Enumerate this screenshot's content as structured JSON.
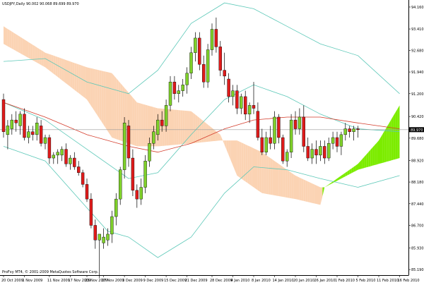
{
  "window": {
    "symbol_header": "USDJPY,Daily  90.002 90.068 89.699 89.970",
    "copyright": "ProFxy MT4, © 2001-2009 MetaQuotes Software Corp."
  },
  "colors": {
    "background": "#ffffff",
    "bull_candle": "#7fd12a",
    "bear_candle": "#e01b1b",
    "wick": "#000000",
    "cloud_bearish": "#fbd3b3",
    "cloud_bullish": "#7cec00",
    "bollinger": "#5cc8b8",
    "moving_average": "#d43b2a",
    "price_line": "#9a9a9a"
  },
  "chart_data": {
    "type": "candlestick",
    "symbol": "USDJPY",
    "timeframe": "Daily",
    "header_ohlc": {
      "open": 90.002,
      "high": 90.068,
      "low": 89.699,
      "close": 89.97
    },
    "current_price_label": "89.970",
    "ylim": [
      85.0,
      94.4
    ],
    "y_ticks": [
      {
        "value": 94.16,
        "label": "94.160"
      },
      {
        "value": 93.41,
        "label": "93.410"
      },
      {
        "value": 92.68,
        "label": "92.680"
      },
      {
        "value": 91.94,
        "label": "91.940"
      },
      {
        "value": 91.2,
        "label": "91.200"
      },
      {
        "value": 90.42,
        "label": "90.420"
      },
      {
        "value": 89.68,
        "label": "89.680"
      },
      {
        "value": 88.92,
        "label": "88.920"
      },
      {
        "value": 88.18,
        "label": "88.180"
      },
      {
        "value": 87.44,
        "label": "87.440"
      },
      {
        "value": 86.7,
        "label": "86.700"
      },
      {
        "value": 85.93,
        "label": "85.930"
      },
      {
        "value": 85.19,
        "label": "85.190"
      }
    ],
    "x_tick_labels": [
      {
        "index": 0,
        "label": "20 Oct 2009"
      },
      {
        "index": 5,
        "label": "1 Nov 2009"
      },
      {
        "index": 11,
        "label": "11 Nov 2009"
      },
      {
        "index": 16,
        "label": "17 Nov 2009"
      },
      {
        "index": 20,
        "label": "23 Nov 2009"
      },
      {
        "index": 24,
        "label": "27 Nov 2009"
      },
      {
        "index": 29,
        "label": "3 Dec 2009"
      },
      {
        "index": 34,
        "label": "9 Dec 2009"
      },
      {
        "index": 39,
        "label": "15 Dec 2009"
      },
      {
        "index": 44,
        "label": "21 Dec 2009"
      },
      {
        "index": 50,
        "label": "28 Dec 2009"
      },
      {
        "index": 55,
        "label": "4 Jan 2010"
      },
      {
        "index": 60,
        "label": "8 Jan 2010"
      },
      {
        "index": 65,
        "label": "14 Jan 2010"
      },
      {
        "index": 70,
        "label": "20 Jan 2010"
      },
      {
        "index": 75,
        "label": "26 Jan 2010"
      },
      {
        "index": 80,
        "label": "1 Feb 2010"
      },
      {
        "index": 85,
        "label": "5 Feb 2010"
      },
      {
        "index": 90,
        "label": "11 Feb 2010"
      },
      {
        "index": 95,
        "label": "16 Feb 2010"
      }
    ],
    "candles": [
      [
        91.0,
        91.2,
        89.7,
        89.9
      ],
      [
        89.8,
        90.3,
        89.3,
        90.1
      ],
      [
        90.0,
        90.5,
        89.8,
        90.3
      ],
      [
        90.3,
        90.6,
        89.9,
        90.2
      ],
      [
        90.1,
        90.6,
        89.8,
        90.5
      ],
      [
        90.5,
        90.7,
        89.6,
        89.7
      ],
      [
        89.7,
        90.1,
        89.5,
        89.9
      ],
      [
        89.9,
        90.1,
        89.6,
        89.8
      ],
      [
        89.8,
        90.4,
        89.6,
        90.2
      ],
      [
        90.1,
        90.3,
        89.4,
        89.5
      ],
      [
        89.5,
        89.8,
        89.3,
        89.7
      ],
      [
        89.7,
        89.8,
        88.8,
        89.0
      ],
      [
        89.0,
        89.2,
        88.8,
        89.1
      ],
      [
        89.1,
        89.3,
        88.8,
        89.2
      ],
      [
        89.1,
        89.4,
        88.9,
        89.3
      ],
      [
        89.3,
        89.5,
        88.7,
        88.8
      ],
      [
        88.8,
        89.1,
        88.6,
        89.0
      ],
      [
        89.0,
        89.2,
        88.6,
        88.7
      ],
      [
        88.7,
        88.9,
        88.4,
        88.5
      ],
      [
        88.5,
        88.6,
        88.0,
        88.1
      ],
      [
        88.1,
        88.3,
        87.5,
        87.6
      ],
      [
        87.6,
        87.8,
        86.6,
        86.7
      ],
      [
        86.7,
        86.9,
        85.9,
        86.2
      ],
      [
        86.2,
        86.4,
        84.9,
        86.4
      ],
      [
        86.1,
        86.6,
        85.9,
        86.3
      ],
      [
        86.2,
        86.6,
        86.0,
        86.4
      ],
      [
        86.4,
        87.2,
        86.1,
        87.0
      ],
      [
        87.0,
        87.8,
        86.7,
        87.6
      ],
      [
        87.6,
        88.7,
        87.4,
        88.6
      ],
      [
        88.6,
        90.4,
        88.3,
        90.2
      ],
      [
        90.1,
        90.3,
        88.7,
        89.0
      ],
      [
        89.0,
        89.3,
        87.7,
        87.9
      ],
      [
        87.9,
        88.1,
        87.3,
        87.6
      ],
      [
        87.6,
        88.3,
        87.4,
        88.0
      ],
      [
        88.0,
        89.1,
        87.8,
        88.9
      ],
      [
        88.9,
        89.7,
        88.7,
        89.5
      ],
      [
        89.5,
        90.1,
        89.3,
        89.9
      ],
      [
        89.8,
        90.5,
        89.6,
        90.3
      ],
      [
        90.3,
        90.6,
        89.9,
        90.1
      ],
      [
        90.1,
        91.0,
        89.9,
        90.8
      ],
      [
        90.8,
        91.8,
        90.6,
        91.6
      ],
      [
        91.6,
        91.8,
        91.0,
        91.2
      ],
      [
        91.2,
        91.5,
        90.9,
        91.3
      ],
      [
        91.3,
        91.7,
        91.1,
        91.5
      ],
      [
        91.5,
        92.1,
        91.2,
        91.9
      ],
      [
        91.9,
        92.8,
        91.7,
        92.6
      ],
      [
        92.6,
        93.3,
        92.3,
        93.1
      ],
      [
        93.1,
        93.3,
        92.0,
        92.2
      ],
      [
        92.2,
        92.5,
        91.4,
        91.6
      ],
      [
        91.6,
        92.9,
        91.4,
        92.7
      ],
      [
        92.7,
        93.6,
        92.5,
        93.4
      ],
      [
        93.4,
        93.8,
        92.6,
        92.8
      ],
      [
        92.8,
        93.0,
        91.8,
        92.0
      ],
      [
        92.0,
        92.6,
        91.5,
        91.8
      ],
      [
        91.7,
        91.9,
        90.9,
        91.1
      ],
      [
        91.1,
        91.5,
        90.8,
        91.3
      ],
      [
        91.3,
        91.5,
        90.5,
        90.7
      ],
      [
        90.7,
        91.2,
        90.5,
        91.1
      ],
      [
        91.1,
        91.3,
        90.3,
        90.5
      ],
      [
        90.5,
        90.9,
        90.2,
        90.8
      ],
      [
        90.8,
        91.6,
        90.5,
        90.7
      ],
      [
        90.6,
        90.9,
        89.6,
        89.7
      ],
      [
        89.7,
        90.0,
        89.1,
        89.2
      ],
      [
        89.2,
        89.9,
        89.1,
        89.7
      ],
      [
        89.7,
        90.1,
        89.3,
        89.5
      ],
      [
        89.5,
        90.6,
        89.3,
        90.4
      ],
      [
        90.4,
        90.5,
        89.5,
        89.7
      ],
      [
        89.7,
        89.8,
        88.8,
        88.9
      ],
      [
        88.9,
        89.3,
        88.7,
        89.2
      ],
      [
        89.2,
        90.5,
        89.0,
        90.3
      ],
      [
        90.3,
        90.6,
        89.8,
        90.0
      ],
      [
        90.0,
        90.7,
        89.8,
        90.4
      ],
      [
        90.4,
        90.8,
        89.2,
        89.4
      ],
      [
        89.4,
        89.7,
        88.9,
        89.0
      ],
      [
        89.0,
        89.5,
        88.8,
        89.3
      ],
      [
        89.3,
        89.6,
        88.8,
        89.1
      ],
      [
        89.1,
        89.6,
        88.9,
        89.4
      ],
      [
        89.4,
        89.6,
        88.8,
        89.0
      ],
      [
        89.0,
        89.7,
        88.9,
        89.5
      ],
      [
        89.5,
        89.9,
        89.3,
        89.7
      ],
      [
        89.7,
        89.9,
        89.2,
        89.4
      ],
      [
        89.4,
        89.9,
        89.1,
        89.8
      ],
      [
        89.8,
        90.2,
        89.6,
        90.0
      ],
      [
        90.0,
        90.1,
        89.7,
        89.9
      ],
      [
        89.9,
        90.1,
        89.6,
        90.0
      ],
      [
        90.0,
        90.1,
        89.7,
        89.97
      ]
    ],
    "bollinger_upper": [
      [
        0,
        92.3
      ],
      [
        10,
        92.4
      ],
      [
        20,
        91.6
      ],
      [
        30,
        91.2
      ],
      [
        37,
        92.0
      ],
      [
        45,
        93.6
      ],
      [
        53,
        94.3
      ],
      [
        60,
        94.1
      ],
      [
        68,
        93.5
      ],
      [
        76,
        92.9
      ],
      [
        85,
        92.5
      ],
      [
        95,
        91.2
      ]
    ],
    "bollinger_middle": [
      [
        0,
        90.9
      ],
      [
        10,
        90.3
      ],
      [
        20,
        89.3
      ],
      [
        30,
        88.3
      ],
      [
        37,
        88.5
      ],
      [
        45,
        89.8
      ],
      [
        53,
        91.0
      ],
      [
        60,
        91.5
      ],
      [
        68,
        91.1
      ],
      [
        76,
        90.5
      ],
      [
        85,
        90.0
      ],
      [
        95,
        89.9
      ]
    ],
    "bollinger_lower": [
      [
        0,
        89.4
      ],
      [
        10,
        88.9
      ],
      [
        20,
        87.3
      ],
      [
        25,
        86.5
      ],
      [
        30,
        86.3
      ],
      [
        37,
        85.6
      ],
      [
        45,
        86.3
      ],
      [
        53,
        87.8
      ],
      [
        60,
        88.7
      ],
      [
        68,
        88.6
      ],
      [
        76,
        88.3
      ],
      [
        85,
        88.0
      ],
      [
        95,
        88.4
      ]
    ],
    "moving_average": [
      [
        0,
        90.9
      ],
      [
        10,
        90.4
      ],
      [
        20,
        89.8
      ],
      [
        30,
        89.4
      ],
      [
        37,
        89.2
      ],
      [
        45,
        89.5
      ],
      [
        53,
        90.0
      ],
      [
        60,
        90.3
      ],
      [
        68,
        90.4
      ],
      [
        76,
        90.4
      ],
      [
        85,
        90.2
      ],
      [
        95,
        90.0
      ]
    ],
    "cloud_span_a": [
      [
        0,
        93.5
      ],
      [
        10,
        92.6
      ],
      [
        20,
        92.1
      ],
      [
        26,
        91.9
      ],
      [
        32,
        90.9
      ],
      [
        37,
        90.7
      ],
      [
        45,
        90.6
      ],
      [
        52,
        89.8
      ],
      [
        56,
        88.4
      ],
      [
        62,
        87.8
      ],
      [
        70,
        87.6
      ],
      [
        76,
        87.4
      ],
      [
        77,
        88.0
      ],
      [
        85,
        88.8
      ],
      [
        90,
        89.6
      ],
      [
        95,
        90.8
      ]
    ],
    "cloud_span_b": [
      [
        0,
        92.9
      ],
      [
        10,
        92.1
      ],
      [
        20,
        91.0
      ],
      [
        26,
        89.7
      ],
      [
        32,
        89.4
      ],
      [
        37,
        89.4
      ],
      [
        45,
        89.5
      ],
      [
        52,
        89.6
      ],
      [
        56,
        89.6
      ],
      [
        62,
        89.2
      ],
      [
        70,
        88.4
      ],
      [
        76,
        88.0
      ],
      [
        77,
        88.0
      ],
      [
        85,
        88.6
      ],
      [
        90,
        88.8
      ],
      [
        95,
        89.0
      ]
    ],
    "grid": false,
    "legend": "none"
  }
}
